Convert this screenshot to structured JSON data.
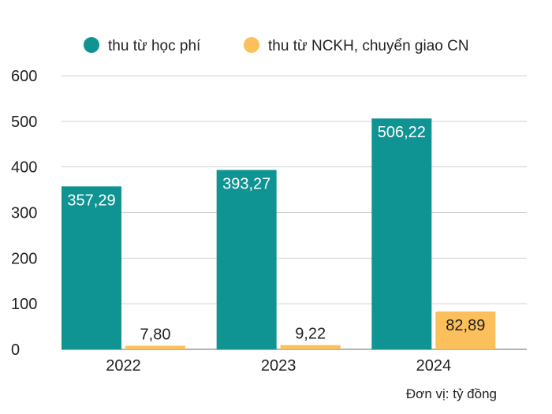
{
  "chart_data": {
    "type": "bar",
    "title": "",
    "xlabel": "",
    "ylabel": "",
    "categories": [
      "2022",
      "2023",
      "2024"
    ],
    "series": [
      {
        "name": "thu từ học phí",
        "color": "#0f9393",
        "values": [
          357.29,
          393.27,
          506.22
        ],
        "labels": [
          "357,29",
          "393,27",
          "506,22"
        ],
        "label_color": "#ffffff"
      },
      {
        "name": "thu từ NCKH, chuyển giao CN",
        "color": "#fbbf5c",
        "values": [
          7.8,
          9.22,
          82.89
        ],
        "labels": [
          "7,80",
          "9,22",
          "82,89"
        ],
        "label_color": "#222222"
      }
    ],
    "ylim": [
      0,
      600
    ],
    "yticks": [
      0,
      100,
      200,
      300,
      400,
      500,
      600
    ],
    "grid": true,
    "legend_position": "top",
    "unit_note": "Đơn vị: tỷ đồng"
  }
}
